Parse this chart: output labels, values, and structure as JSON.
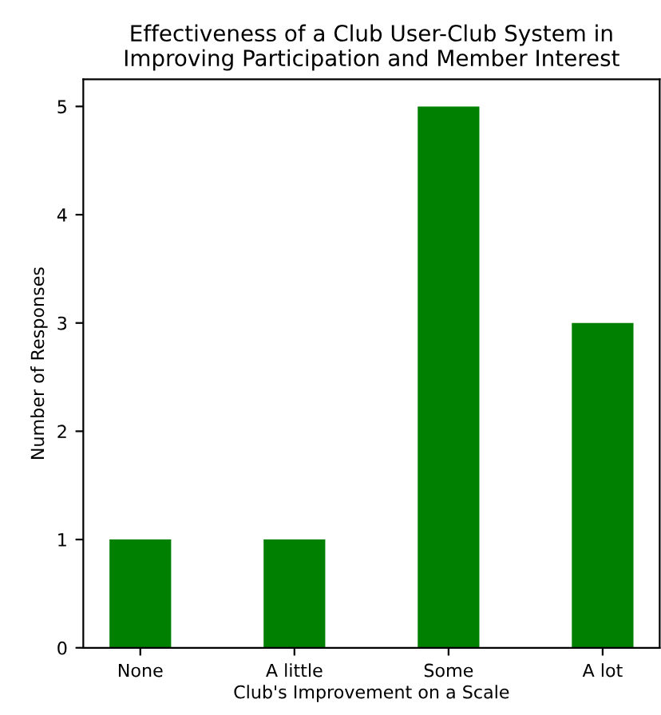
{
  "chart_data": {
    "type": "bar",
    "title": "Effectiveness of a Club User-Club System in\nImproving Participation and Member Interest",
    "xlabel": "Club's Improvement on a Scale",
    "ylabel": "Number of Responses",
    "categories": [
      "None",
      "A little",
      "Some",
      "A lot"
    ],
    "values": [
      1,
      1,
      5,
      3
    ],
    "color": "#008000",
    "ylim": [
      0,
      5.25
    ],
    "yticks": [
      0,
      1,
      2,
      3,
      4,
      5
    ],
    "grid": false
  }
}
